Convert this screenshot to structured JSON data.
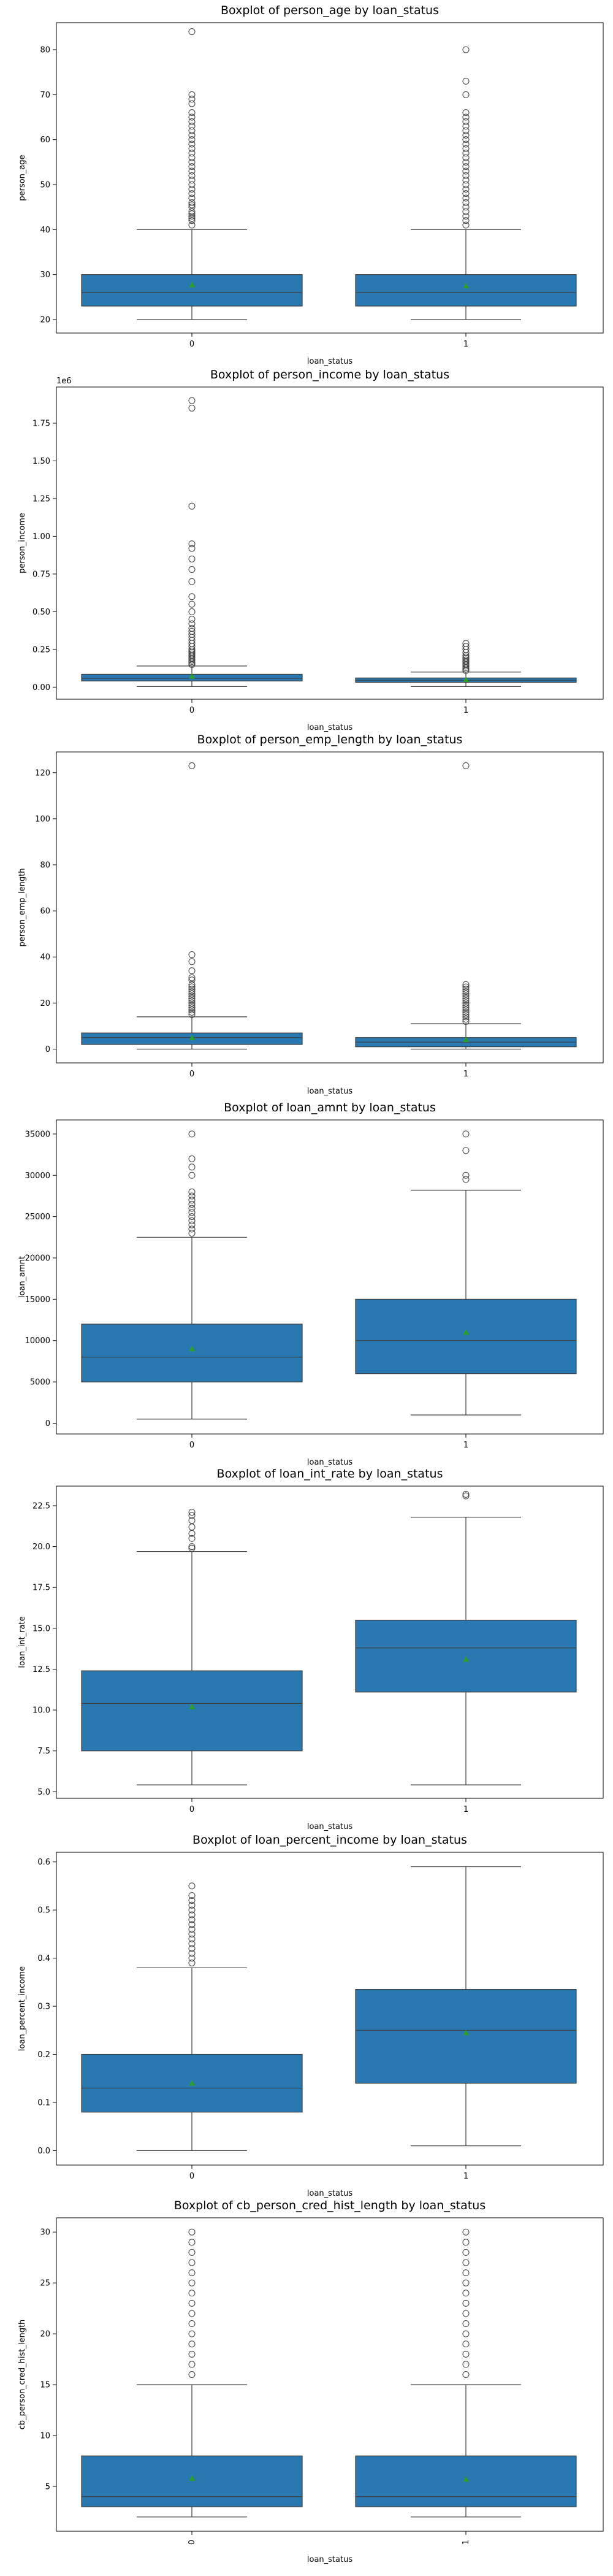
{
  "chart_data": [
    {
      "type": "box",
      "title": "Boxplot of person_age by loan_status",
      "xlabel": "loan_status",
      "ylabel": "person_age",
      "categories": [
        "0",
        "1"
      ],
      "ylim": [
        17,
        86
      ],
      "yticks": [
        20,
        30,
        40,
        50,
        60,
        70,
        80
      ],
      "ytick_labels": [
        "20",
        "30",
        "40",
        "50",
        "60",
        "70",
        "80"
      ],
      "offset_text": "",
      "box_color": "#2a78b2",
      "mean_marker_color": "#2ca02c",
      "boxes": [
        {
          "category": "0",
          "whisker_low": 20,
          "q1": 23,
          "median": 26,
          "q3": 30,
          "whisker_high": 40,
          "mean": 27.7,
          "outliers": [
            41,
            42,
            42.5,
            43,
            43.5,
            44,
            45,
            45.5,
            46,
            47,
            48,
            49,
            50,
            51,
            52,
            53,
            54,
            55,
            56,
            57,
            58,
            59,
            60,
            61,
            62,
            63,
            64,
            65,
            66,
            68,
            69,
            70,
            84
          ]
        },
        {
          "category": "1",
          "whisker_low": 20,
          "q1": 23,
          "median": 26,
          "q3": 30,
          "whisker_high": 40,
          "mean": 27.5,
          "outliers": [
            41,
            42,
            43,
            44,
            45,
            46,
            47,
            48,
            49,
            50,
            51,
            52,
            53,
            54,
            55,
            56,
            57,
            58,
            59,
            60,
            61,
            62,
            63,
            64,
            65,
            66,
            70,
            73,
            80
          ]
        }
      ]
    },
    {
      "type": "box",
      "title": "Boxplot of person_income by loan_status",
      "xlabel": "loan_status",
      "ylabel": "person_income",
      "categories": [
        "0",
        "1"
      ],
      "ylim": [
        -0.08,
        1.99
      ],
      "yticks": [
        0,
        0.25,
        0.5,
        0.75,
        1.0,
        1.25,
        1.5,
        1.75
      ],
      "ytick_labels": [
        "0.00",
        "0.25",
        "0.50",
        "0.75",
        "1.00",
        "1.25",
        "1.50",
        "1.75"
      ],
      "offset_text": "1e6",
      "box_color": "#2a78b2",
      "mean_marker_color": "#2ca02c",
      "boxes": [
        {
          "category": "0",
          "whisker_low": 0.004,
          "q1": 0.041,
          "median": 0.058,
          "q3": 0.085,
          "whisker_high": 0.14,
          "mean": 0.072,
          "outliers": [
            0.15,
            0.16,
            0.17,
            0.18,
            0.19,
            0.2,
            0.21,
            0.22,
            0.23,
            0.24,
            0.25,
            0.27,
            0.29,
            0.31,
            0.33,
            0.35,
            0.37,
            0.39,
            0.42,
            0.45,
            0.5,
            0.55,
            0.6,
            0.7,
            0.78,
            0.85,
            0.92,
            0.95,
            1.2,
            1.85,
            1.9
          ]
        },
        {
          "category": "1",
          "whisker_low": 0.004,
          "q1": 0.032,
          "median": 0.046,
          "q3": 0.061,
          "whisker_high": 0.1,
          "mean": 0.05,
          "outliers": [
            0.11,
            0.12,
            0.13,
            0.14,
            0.15,
            0.16,
            0.17,
            0.18,
            0.19,
            0.2,
            0.21,
            0.23,
            0.25,
            0.27,
            0.29
          ]
        }
      ]
    },
    {
      "type": "box",
      "title": "Boxplot of person_emp_length by loan_status",
      "xlabel": "loan_status",
      "ylabel": "person_emp_length",
      "categories": [
        "0",
        "1"
      ],
      "ylim": [
        -6,
        129
      ],
      "yticks": [
        0,
        20,
        40,
        60,
        80,
        100,
        120
      ],
      "ytick_labels": [
        "0",
        "20",
        "40",
        "60",
        "80",
        "100",
        "120"
      ],
      "offset_text": "",
      "box_color": "#2a78b2",
      "mean_marker_color": "#2ca02c",
      "boxes": [
        {
          "category": "0",
          "whisker_low": 0,
          "q1": 2,
          "median": 5,
          "q3": 7,
          "whisker_high": 14,
          "mean": 4.9,
          "outliers": [
            15,
            16,
            17,
            18,
            19,
            20,
            21,
            22,
            23,
            24,
            25,
            26,
            27,
            28,
            30,
            31,
            34,
            38,
            41,
            123
          ]
        },
        {
          "category": "1",
          "whisker_low": 0,
          "q1": 1,
          "median": 3,
          "q3": 5,
          "whisker_high": 11,
          "mean": 4.1,
          "outliers": [
            12,
            13,
            14,
            15,
            16,
            17,
            18,
            19,
            20,
            21,
            22,
            23,
            24,
            25,
            26,
            27,
            28,
            123
          ]
        }
      ]
    },
    {
      "type": "box",
      "title": "Boxplot of loan_amnt by loan_status",
      "xlabel": "loan_status",
      "ylabel": "loan_amnt",
      "categories": [
        "0",
        "1"
      ],
      "ylim": [
        -1300,
        36700
      ],
      "yticks": [
        0,
        5000,
        10000,
        15000,
        20000,
        25000,
        30000,
        35000
      ],
      "ytick_labels": [
        "0",
        "5000",
        "10000",
        "15000",
        "20000",
        "25000",
        "30000",
        "35000"
      ],
      "offset_text": "",
      "box_color": "#2a78b2",
      "mean_marker_color": "#2ca02c",
      "boxes": [
        {
          "category": "0",
          "whisker_low": 500,
          "q1": 5000,
          "median": 8000,
          "q3": 12000,
          "whisker_high": 22500,
          "mean": 9000,
          "outliers": [
            23000,
            23500,
            24000,
            24500,
            25000,
            25500,
            26000,
            26500,
            27000,
            27500,
            28000,
            30000,
            31000,
            32000,
            35000
          ]
        },
        {
          "category": "1",
          "whisker_low": 1000,
          "q1": 6000,
          "median": 10000,
          "q3": 15000,
          "whisker_high": 28200,
          "mean": 11000,
          "outliers": [
            29500,
            30000,
            33000,
            35000
          ]
        }
      ]
    },
    {
      "type": "box",
      "title": "Boxplot of loan_int_rate by loan_status",
      "xlabel": "loan_status",
      "ylabel": "loan_int_rate",
      "categories": [
        "0",
        "1"
      ],
      "ylim": [
        4.6,
        23.7
      ],
      "yticks": [
        5.0,
        7.5,
        10.0,
        12.5,
        15.0,
        17.5,
        20.0,
        22.5
      ],
      "ytick_labels": [
        "5.0",
        "7.5",
        "10.0",
        "12.5",
        "15.0",
        "17.5",
        "20.0",
        "22.5"
      ],
      "offset_text": "",
      "box_color": "#2a78b2",
      "mean_marker_color": "#2ca02c",
      "boxes": [
        {
          "category": "0",
          "whisker_low": 5.42,
          "q1": 7.5,
          "median": 10.4,
          "q3": 12.4,
          "whisker_high": 19.7,
          "mean": 10.2,
          "outliers": [
            19.9,
            20.0,
            20.5,
            20.8,
            21.2,
            21.6,
            21.9,
            22.1
          ]
        },
        {
          "category": "1",
          "whisker_low": 5.42,
          "q1": 11.1,
          "median": 13.8,
          "q3": 15.5,
          "whisker_high": 21.8,
          "mean": 13.1,
          "outliers": [
            23.1,
            23.2
          ]
        }
      ]
    },
    {
      "type": "box",
      "title": "Boxplot of loan_percent_income by loan_status",
      "xlabel": "loan_status",
      "ylabel": "loan_percent_income",
      "categories": [
        "0",
        "1"
      ],
      "ylim": [
        -0.03,
        0.62
      ],
      "yticks": [
        0.0,
        0.1,
        0.2,
        0.3,
        0.4,
        0.5,
        0.6
      ],
      "ytick_labels": [
        "0.0",
        "0.1",
        "0.2",
        "0.3",
        "0.4",
        "0.5",
        "0.6"
      ],
      "offset_text": "",
      "box_color": "#2a78b2",
      "mean_marker_color": "#2ca02c",
      "boxes": [
        {
          "category": "0",
          "whisker_low": 0.0,
          "q1": 0.08,
          "median": 0.13,
          "q3": 0.2,
          "whisker_high": 0.38,
          "mean": 0.14,
          "outliers": [
            0.39,
            0.4,
            0.41,
            0.42,
            0.43,
            0.44,
            0.45,
            0.46,
            0.47,
            0.48,
            0.49,
            0.5,
            0.51,
            0.52,
            0.53,
            0.55
          ]
        },
        {
          "category": "1",
          "whisker_low": 0.01,
          "q1": 0.14,
          "median": 0.25,
          "q3": 0.335,
          "whisker_high": 0.59,
          "mean": 0.245,
          "outliers": []
        }
      ]
    },
    {
      "type": "box",
      "title": "Boxplot of cb_person_cred_hist_length by loan_status",
      "xlabel": "loan_status",
      "ylabel": "cb_person_cred_hist_length",
      "categories": [
        "0",
        "1"
      ],
      "ylim": [
        0.6,
        31.4
      ],
      "yticks": [
        5,
        10,
        15,
        20,
        25,
        30
      ],
      "ytick_labels": [
        "5",
        "10",
        "15",
        "20",
        "25",
        "30"
      ],
      "offset_text": "",
      "box_color": "#2a78b2",
      "mean_marker_color": "#2ca02c",
      "boxes": [
        {
          "category": "0",
          "whisker_low": 2,
          "q1": 3,
          "median": 4,
          "q3": 8,
          "whisker_high": 15,
          "mean": 5.8,
          "outliers": [
            16,
            17,
            18,
            19,
            20,
            21,
            22,
            23,
            24,
            25,
            26,
            27,
            28,
            29,
            30
          ]
        },
        {
          "category": "1",
          "whisker_low": 2,
          "q1": 3,
          "median": 4,
          "q3": 8,
          "whisker_high": 15,
          "mean": 5.7,
          "outliers": [
            16,
            17,
            18,
            19,
            20,
            21,
            22,
            23,
            24,
            25,
            26,
            27,
            28,
            29,
            30
          ]
        }
      ]
    }
  ]
}
